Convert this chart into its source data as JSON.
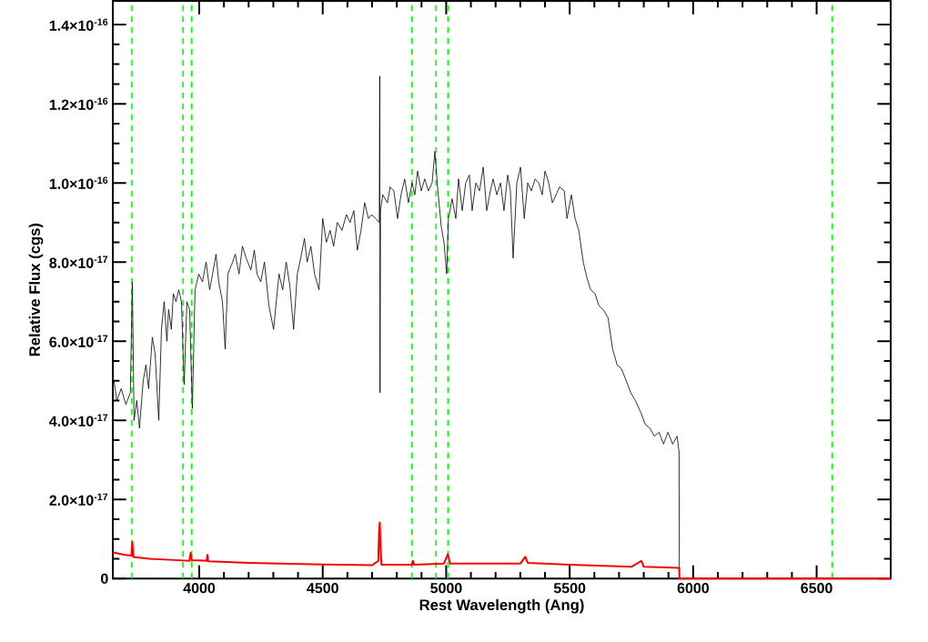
{
  "chart_data": {
    "type": "line",
    "xlabel": "Rest Wavelength (Ang)",
    "ylabel": "Relative Flux (cgs)",
    "xlim": [
      3650,
      6800
    ],
    "ylim": [
      0,
      1.46e-16
    ],
    "xticks": [
      4000,
      4500,
      5000,
      5500,
      6000,
      6500
    ],
    "yticks": [
      0,
      {
        "value": 2e-17,
        "label": "2.0×10$^{-17}$"
      },
      {
        "value": 4e-17,
        "label": "4.0×10$^{-17}$"
      },
      {
        "value": 6e-17,
        "label": "6.0×10$^{-17}$"
      },
      {
        "value": 8e-17,
        "label": "8.0×10$^{-17}$"
      },
      {
        "value": 1e-16,
        "label": "1.0×10$^{-16}$"
      },
      {
        "value": 1.2e-16,
        "label": "1.2×10$^{-16}$"
      },
      {
        "value": 1.4e-16,
        "label": "1.4×10$^{-16}$"
      }
    ],
    "series": [
      {
        "color": "#000000",
        "x": [
          3655,
          3666,
          3684,
          3703,
          3721,
          3729,
          3736,
          3747,
          3758,
          3773,
          3784,
          3795,
          3810,
          3821,
          3836,
          3847,
          3858,
          3869,
          3876,
          3887,
          3895,
          3906,
          3917,
          3928,
          3939,
          3950,
          3961,
          3972,
          3983,
          3998,
          4013,
          4028,
          4042,
          4054,
          4068,
          4079,
          4094,
          4105,
          4116,
          4135,
          4146,
          4161,
          4175,
          4190,
          4209,
          4223,
          4234,
          4249,
          4264,
          4282,
          4301,
          4312,
          4323,
          4338,
          4352,
          4367,
          4382,
          4397,
          4411,
          4426,
          4437,
          4452,
          4467,
          4485,
          4500,
          4515,
          4530,
          4544,
          4559,
          4578,
          4596,
          4611,
          4626,
          4640,
          4655,
          4670,
          4685,
          4699,
          4714,
          4729,
          4731,
          4732,
          4734,
          4743,
          4762,
          4773,
          4788,
          4803,
          4817,
          4832,
          4847,
          4862,
          4873,
          4884,
          4899,
          4913,
          4928,
          4943,
          4954,
          4965,
          4980,
          4991,
          5002,
          5009,
          5024,
          5039,
          5050,
          5065,
          5079,
          5094,
          5105,
          5120,
          5135,
          5150,
          5164,
          5179,
          5190,
          5205,
          5220,
          5234,
          5249,
          5260,
          5271,
          5286,
          5301,
          5316,
          5330,
          5345,
          5360,
          5375,
          5389,
          5400,
          5415,
          5430,
          5445,
          5459,
          5478,
          5489,
          5507,
          5522,
          5537,
          5555,
          5570,
          5585,
          5603,
          5618,
          5636,
          5655,
          5674,
          5692,
          5710,
          5729,
          5747,
          5766,
          5788,
          5806,
          5825,
          5843,
          5862,
          5880,
          5898,
          5917,
          5935,
          5943,
          5944
        ],
        "values": [
          5e-17,
          4.5e-17,
          4.8e-17,
          4.4e-17,
          4.7e-17,
          7.5e-17,
          4e-17,
          4.5e-17,
          3.8e-17,
          5e-17,
          5.4e-17,
          4.8e-17,
          6.1e-17,
          5.7e-17,
          4e-17,
          6.3e-17,
          7e-17,
          6e-17,
          6.8e-17,
          6.3e-17,
          7.2e-17,
          7e-17,
          7.3e-17,
          7e-17,
          4.9e-17,
          7e-17,
          6.8e-17,
          4.3e-17,
          7.3e-17,
          7.7e-17,
          7.5e-17,
          8e-17,
          7.3e-17,
          7.7e-17,
          8.2e-17,
          7.5e-17,
          7e-17,
          5.8e-17,
          7.7e-17,
          8e-17,
          8.2e-17,
          7.7e-17,
          8.4e-17,
          8.1e-17,
          7.8e-17,
          8.3e-17,
          7.7e-17,
          7.5e-17,
          8e-17,
          6.9e-17,
          6.3e-17,
          7e-17,
          7.7e-17,
          7.3e-17,
          8e-17,
          7.4e-17,
          6.3e-17,
          7.7e-17,
          8.1e-17,
          8.6e-17,
          8e-17,
          8.4e-17,
          7.7e-17,
          7.3e-17,
          9.1e-17,
          8.5e-17,
          8.8e-17,
          8.4e-17,
          9e-17,
          8.8e-17,
          9.2e-17,
          9e-17,
          9.3e-17,
          8.3e-17,
          8.8e-17,
          9.5e-17,
          9.1e-17,
          9.2e-17,
          9.1e-17,
          9e-17,
          1.27e-16,
          4.7e-17,
          9.3e-17,
          9.7e-17,
          9.5e-17,
          9.9e-17,
          9.8e-17,
          9.1e-17,
          9.7e-17,
          1.01e-16,
          9.5e-17,
          1e-16,
          9.7e-17,
          1.03e-16,
          9.8e-17,
          1.01e-16,
          9.8e-17,
          1e-16,
          1.08e-16,
          9.9e-17,
          8.9e-17,
          8.5e-17,
          7.7e-17,
          9.1e-17,
          9.6e-17,
          9.1e-17,
          1.01e-16,
          9.3e-17,
          1e-16,
          1.02e-16,
          9.3e-17,
          1e-16,
          9.8e-17,
          1.04e-16,
          9.3e-17,
          9.8e-17,
          1.01e-16,
          9.7e-17,
          1e-16,
          9.3e-17,
          1.02e-16,
          9.8e-17,
          8.1e-17,
          1e-16,
          1.04e-16,
          9.1e-17,
          1e-16,
          9.8e-17,
          1.01e-16,
          1e-16,
          9.7e-17,
          1.03e-16,
          1e-16,
          9.5e-17,
          9.7e-17,
          9.9e-17,
          9.8e-17,
          9.1e-17,
          9.7e-17,
          9.1e-17,
          8.8e-17,
          8e-17,
          7.6e-17,
          7.3e-17,
          7.2e-17,
          6.9e-17,
          6.8e-17,
          6.6e-17,
          5.8e-17,
          5.4e-17,
          5.3e-17,
          5e-17,
          4.7e-17,
          4.5e-17,
          4.2e-17,
          3.9e-17,
          3.8e-17,
          3.6e-17,
          3.7e-17,
          3.4e-17,
          3.7e-17,
          3.4e-17,
          3.6e-17,
          3.2e-17,
          0
        ]
      },
      {
        "color": "#ff0000",
        "x": [
          3651,
          3700,
          3725,
          3729,
          3733,
          3800,
          3900,
          3960,
          3965,
          3970,
          4000,
          4030,
          4033,
          4036,
          4200,
          4500,
          4700,
          4725,
          4728,
          4731,
          4734,
          4738,
          4861,
          4865,
          4870,
          4990,
          5007,
          5015,
          5300,
          5320,
          5330,
          5500,
          5750,
          5790,
          5800,
          5943,
          5945,
          6800
        ],
        "values": [
          6.6e-18,
          6e-18,
          5.8e-18,
          9.3e-18,
          5.5e-18,
          5e-18,
          4.7e-18,
          4.5e-18,
          6.5e-18,
          4.6e-18,
          4.6e-18,
          4.5e-18,
          6e-18,
          4.4e-18,
          4e-18,
          3.6e-18,
          3.4e-18,
          4.5e-18,
          1.2e-17,
          1.42e-17,
          8e-18,
          3.5e-18,
          3.5e-18,
          4.5e-18,
          3.5e-18,
          3.8e-18,
          6.2e-18,
          3.8e-18,
          3.8e-18,
          5.5e-18,
          4e-18,
          3.5e-18,
          3e-18,
          4.5e-18,
          3e-18,
          2.7e-18,
          0,
          0
        ]
      }
    ],
    "ref_lines": [
      {
        "axis": "x",
        "value": 3727,
        "color": "#00ff00",
        "line_style": "dashed"
      },
      {
        "axis": "x",
        "value": 3934,
        "color": "#00ff00",
        "line_style": "dashed"
      },
      {
        "axis": "x",
        "value": 3969,
        "color": "#00ff00",
        "line_style": "dashed"
      },
      {
        "axis": "x",
        "value": 4861,
        "color": "#00ff00",
        "line_style": "dashed"
      },
      {
        "axis": "x",
        "value": 4959,
        "color": "#00ff00",
        "line_style": "dashed"
      },
      {
        "axis": "x",
        "value": 5007,
        "color": "#00ff00",
        "line_style": "dashed"
      },
      {
        "axis": "x",
        "value": 6563,
        "color": "#00ff00",
        "line_style": "dashed"
      }
    ]
  }
}
